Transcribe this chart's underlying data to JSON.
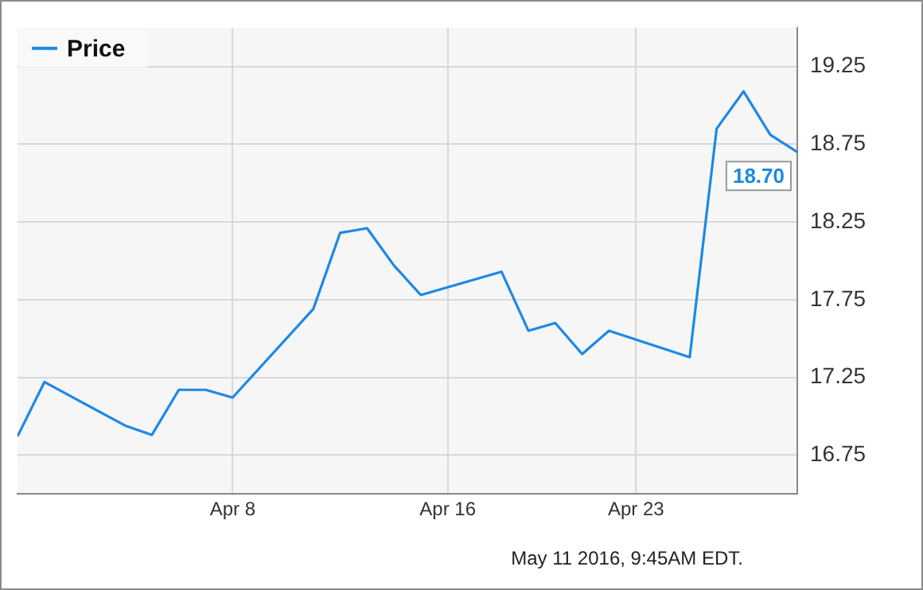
{
  "chart_data": {
    "type": "line",
    "x": [
      "2016-03-31",
      "2016-04-01",
      "2016-04-04",
      "2016-04-05",
      "2016-04-06",
      "2016-04-07",
      "2016-04-08",
      "2016-04-11",
      "2016-04-12",
      "2016-04-13",
      "2016-04-14",
      "2016-04-15",
      "2016-04-18",
      "2016-04-19",
      "2016-04-20",
      "2016-04-21",
      "2016-04-22",
      "2016-04-25",
      "2016-04-26",
      "2016-04-27",
      "2016-04-28",
      "2016-04-29"
    ],
    "series": [
      {
        "name": "Price",
        "color": "#1e88e5",
        "values": [
          16.87,
          17.22,
          16.94,
          16.88,
          17.17,
          17.17,
          17.12,
          17.69,
          18.18,
          18.21,
          17.97,
          17.78,
          17.93,
          17.55,
          17.6,
          17.4,
          17.55,
          17.38,
          18.85,
          19.09,
          18.81,
          18.7
        ],
        "value_labels": [
          null,
          null,
          null,
          null,
          null,
          null,
          null,
          null,
          null,
          null,
          null,
          null,
          null,
          null,
          null,
          null,
          null,
          null,
          null,
          null,
          null,
          "18.70"
        ]
      }
    ],
    "xlim": [
      "2016-03-31",
      "2016-04-29"
    ],
    "xticks": [
      {
        "value": "2016-04-08",
        "label": "Apr 8"
      },
      {
        "value": "2016-04-16",
        "label": "Apr 16"
      },
      {
        "value": "2016-04-23",
        "label": "Apr 23"
      }
    ],
    "ylim": [
      16.5,
      19.5
    ],
    "yticks": [
      16.75,
      17.25,
      17.75,
      18.25,
      18.75,
      19.25
    ],
    "grid": true,
    "legend": "top left",
    "marker": "none",
    "line_style": "solid",
    "annotations": [
      "May 11 2016, 9:45AM EDT."
    ]
  }
}
